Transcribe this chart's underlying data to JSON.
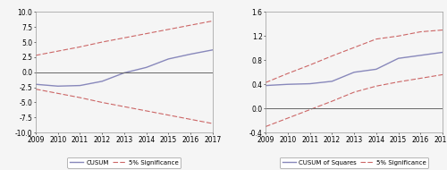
{
  "years": [
    2009,
    2010,
    2011,
    2012,
    2013,
    2014,
    2015,
    2016,
    2017
  ],
  "left": {
    "cusum": [
      -2.0,
      -2.3,
      -2.2,
      -1.5,
      -0.1,
      0.8,
      2.2,
      3.0,
      3.7
    ],
    "sig_upper": [
      2.8,
      3.5,
      4.2,
      5.0,
      5.7,
      6.4,
      7.1,
      7.8,
      8.5
    ],
    "sig_lower": [
      -2.8,
      -3.5,
      -4.2,
      -5.0,
      -5.7,
      -6.4,
      -7.1,
      -7.8,
      -8.5
    ],
    "ylim": [
      -10.0,
      10.0
    ],
    "yticks": [
      -10.0,
      -7.5,
      -5.0,
      -2.5,
      0.0,
      2.5,
      5.0,
      7.5,
      10.0
    ],
    "ylabel_vals": [
      "-10.0",
      "-7.5",
      "-5.0",
      "-2.5",
      "0.0",
      "2.5",
      "5.0",
      "7.5",
      "10.0"
    ],
    "legend_labels": [
      "CUSUM",
      "5% Significance"
    ]
  },
  "right": {
    "cusum": [
      0.38,
      0.4,
      0.41,
      0.45,
      0.6,
      0.65,
      0.83,
      0.88,
      0.93
    ],
    "sig_upper": [
      0.43,
      0.58,
      0.72,
      0.87,
      1.01,
      1.15,
      1.2,
      1.27,
      1.3
    ],
    "sig_lower": [
      -0.3,
      -0.16,
      -0.02,
      0.12,
      0.27,
      0.37,
      0.44,
      0.5,
      0.56
    ],
    "ylim": [
      -0.4,
      1.6
    ],
    "yticks": [
      -0.4,
      0.0,
      0.4,
      0.8,
      1.2,
      1.6
    ],
    "ylabel_vals": [
      "-0.4",
      "0.0",
      "0.4",
      "0.8",
      "1.2",
      "1.6"
    ],
    "legend_labels": [
      "CUSUM of Squares",
      "5% Significance"
    ]
  },
  "cusum_color": "#8888bb",
  "sig_color": "#cc6666",
  "zero_line_color": "#666666",
  "spine_color": "#999999",
  "bg_color": "#f5f5f5",
  "plot_bg_color": "#f5f5f5",
  "font_size_tick": 5.5,
  "font_size_legend": 5.0
}
